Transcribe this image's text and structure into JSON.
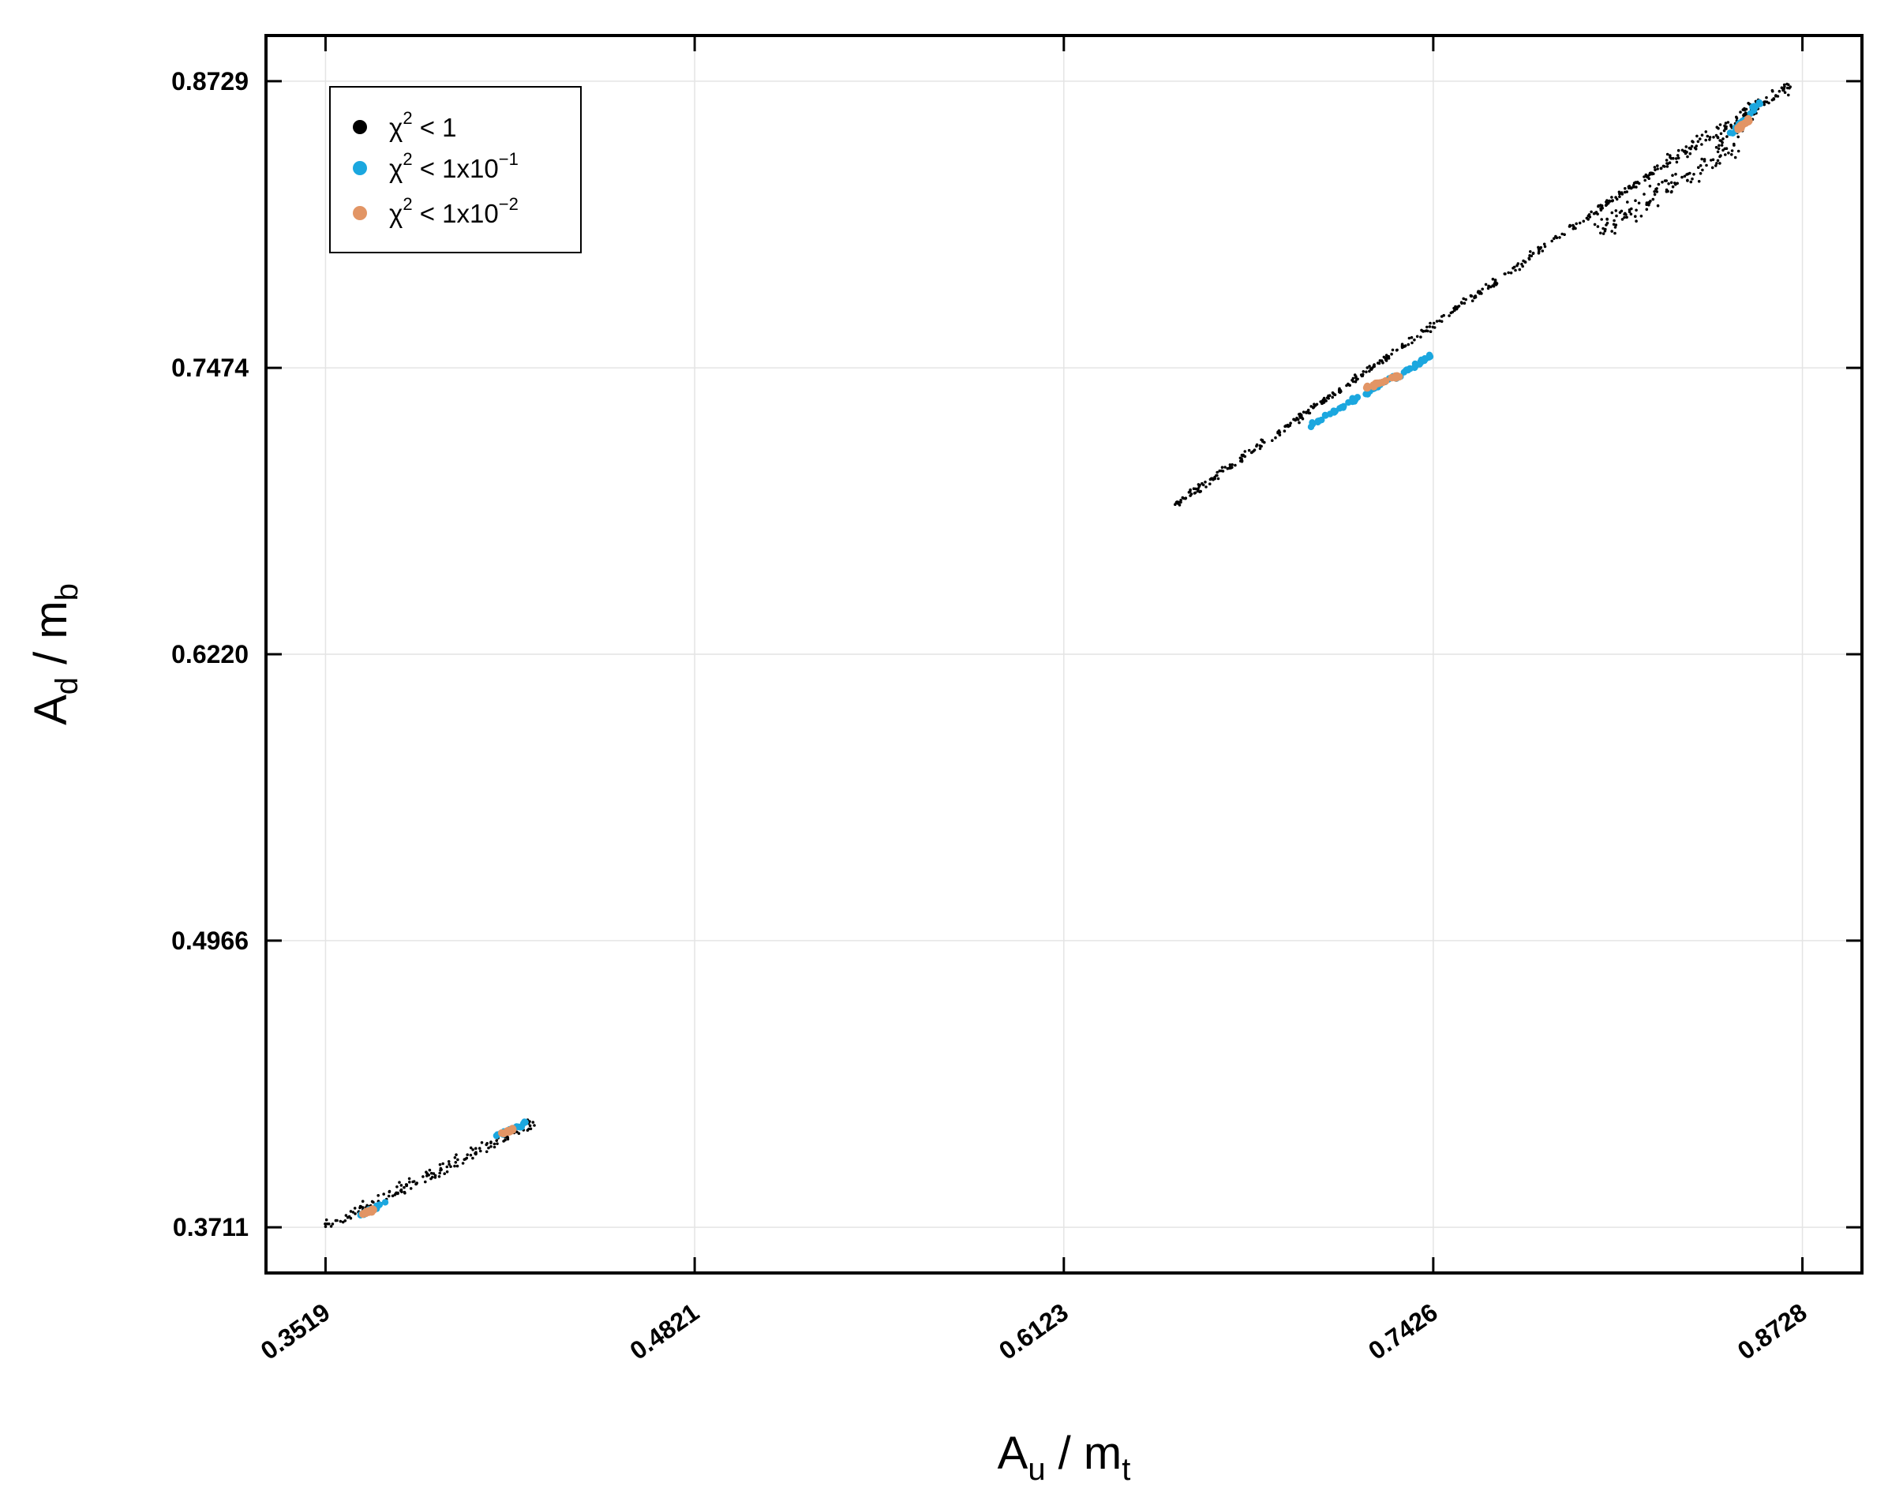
{
  "chart_data": {
    "type": "scatter",
    "title": "",
    "xlabel": {
      "main": "A",
      "sub": "u",
      "sep": " / ",
      "main2": "m",
      "sub2": "t"
    },
    "ylabel": {
      "main": "A",
      "sub": "d",
      "sep": " / ",
      "main2": "m",
      "sub2": "b"
    },
    "xlim": [
      0.3309,
      0.8938
    ],
    "ylim": [
      0.3511,
      0.8929
    ],
    "xticks": [
      "0.3519",
      "0.4821",
      "0.6123",
      "0.7426",
      "0.8728"
    ],
    "yticks": [
      "0.3711",
      "0.4966",
      "0.6220",
      "0.7474",
      "0.8729"
    ],
    "grid": true,
    "legend_position": "top-left",
    "series": [
      {
        "name": "χ² < 1",
        "label": {
          "base": "χ",
          "sup1": "2",
          "rest": " < 1",
          "sup2": ""
        },
        "color": "#000000",
        "segments": [
          {
            "from": [
              0.3519,
              0.3711
            ],
            "to": [
              0.4255,
              0.417
            ],
            "width": 0.0035
          },
          {
            "from": [
              0.651,
              0.687
            ],
            "to": [
              0.815,
              0.829
            ],
            "width": 0.0022
          },
          {
            "from": [
              0.815,
              0.829
            ],
            "to": [
              0.826,
              0.838
            ],
            "width": 0.0018
          },
          {
            "from": [
              0.826,
              0.838
            ],
            "to": [
              0.87,
              0.872
            ],
            "width": 0.004
          },
          {
            "from": [
              0.8,
              0.806
            ],
            "to": [
              0.85,
              0.845
            ],
            "width": 0.0065
          },
          {
            "from": [
              0.844,
              0.845
            ],
            "to": [
              0.858,
              0.864
            ],
            "width": 0.006
          }
        ]
      },
      {
        "name": "χ² < 1x10⁻¹",
        "label": {
          "base": "χ",
          "sup1": "2",
          "rest": " < 1x10",
          "sup2": "−1"
        },
        "color": "#1ba7df",
        "segments": [
          {
            "from": [
              0.364,
              0.376
            ],
            "to": [
              0.373,
              0.382
            ],
            "width": 0.0015
          },
          {
            "from": [
              0.412,
              0.411
            ],
            "to": [
              0.423,
              0.417
            ],
            "width": 0.0015
          },
          {
            "from": [
              0.699,
              0.722
            ],
            "to": [
              0.7426,
              0.753
            ],
            "width": 0.0014
          },
          {
            "from": [
              0.847,
              0.849
            ],
            "to": [
              0.858,
              0.864
            ],
            "width": 0.002
          }
        ]
      },
      {
        "name": "χ² < 1x10⁻²",
        "label": {
          "base": "χ",
          "sup1": "2",
          "rest": " < 1x10",
          "sup2": "−2"
        },
        "color": "#e29565",
        "segments": [
          {
            "from": [
              0.365,
              0.377
            ],
            "to": [
              0.369,
              0.379
            ],
            "width": 0.0008
          },
          {
            "from": [
              0.414,
              0.412
            ],
            "to": [
              0.418,
              0.414
            ],
            "width": 0.0008
          },
          {
            "from": [
              0.719,
              0.739
            ],
            "to": [
              0.733,
              0.745
            ],
            "width": 0.001
          },
          {
            "from": [
              0.85,
              0.852
            ],
            "to": [
              0.854,
              0.856
            ],
            "width": 0.001
          }
        ]
      }
    ]
  }
}
